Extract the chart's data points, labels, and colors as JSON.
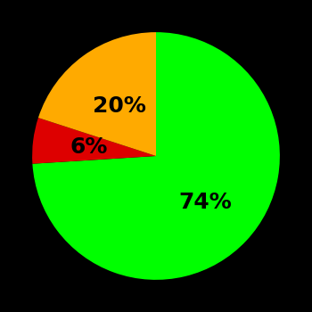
{
  "slices": [
    74,
    6,
    20
  ],
  "colors": [
    "#00ff00",
    "#dd0000",
    "#ffaa00"
  ],
  "labels": [
    "74%",
    "6%",
    "20%"
  ],
  "label_radii": [
    0.55,
    0.55,
    0.5
  ],
  "background_color": "#000000",
  "text_color": "#000000",
  "label_fontsize": 18,
  "label_fontweight": "bold",
  "startangle": 90,
  "figsize": [
    3.5,
    3.5
  ],
  "dpi": 100
}
